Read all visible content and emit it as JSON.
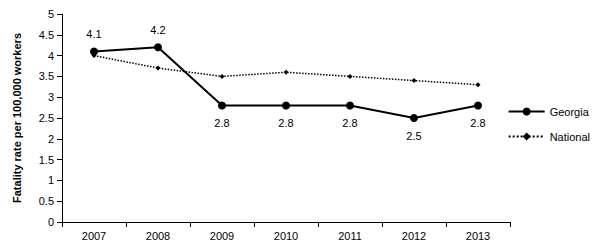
{
  "chart_data": {
    "type": "line",
    "y_label": "Fatality rate per 100,000 workers",
    "categories": [
      "2007",
      "2008",
      "2009",
      "2010",
      "2011",
      "2012",
      "2013"
    ],
    "series": [
      {
        "name": "Georgia",
        "color": "#000000",
        "marker": "circle",
        "line_style": "solid",
        "data_labels": true,
        "values": [
          4.1,
          4.2,
          2.8,
          2.8,
          2.8,
          2.5,
          2.8
        ]
      },
      {
        "name": "National",
        "color": "#000000",
        "marker": "diamond",
        "line_style": "dotted",
        "values": [
          4.0,
          3.7,
          3.5,
          3.6,
          3.5,
          3.4,
          3.3
        ]
      }
    ],
    "ylim": [
      0,
      5
    ],
    "yticks": [
      0,
      0.5,
      1,
      1.5,
      2,
      2.5,
      3,
      3.5,
      4,
      4.5,
      5
    ],
    "grid": false,
    "legend": "right"
  }
}
